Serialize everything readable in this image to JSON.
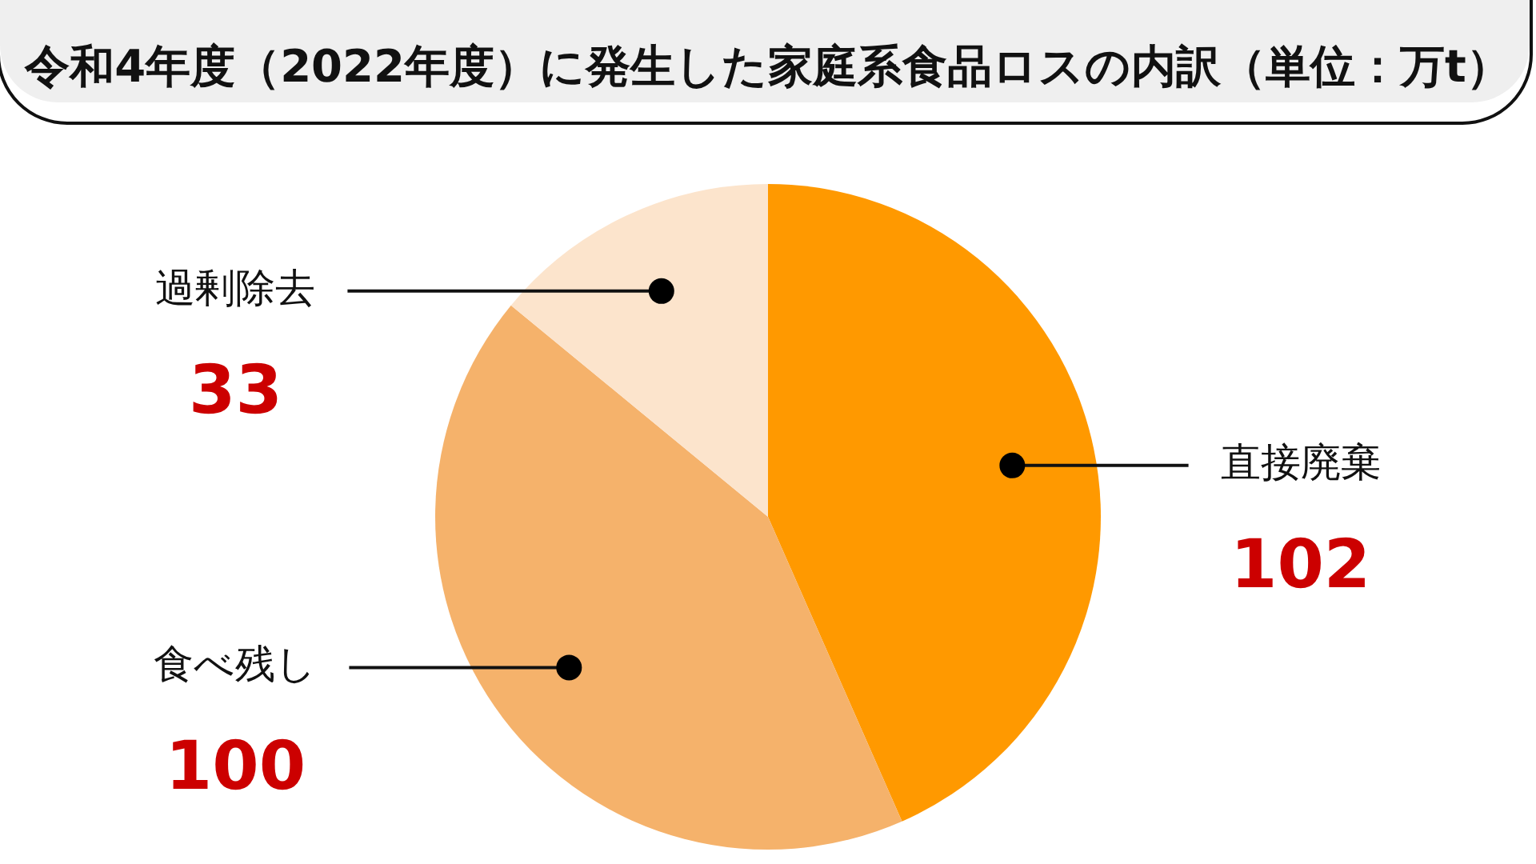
{
  "chart_data": {
    "type": "pie",
    "title": "令和4年度（2022年度）に発生した家庭系食品ロスの内訳（単位：万t）",
    "categories": [
      "直接廃棄",
      "食べ残し",
      "過剰除去"
    ],
    "values": [
      102,
      100,
      33
    ],
    "colors": [
      "#ff9900",
      "#f5b26b",
      "#fce4cc"
    ],
    "data_labels": true
  }
}
